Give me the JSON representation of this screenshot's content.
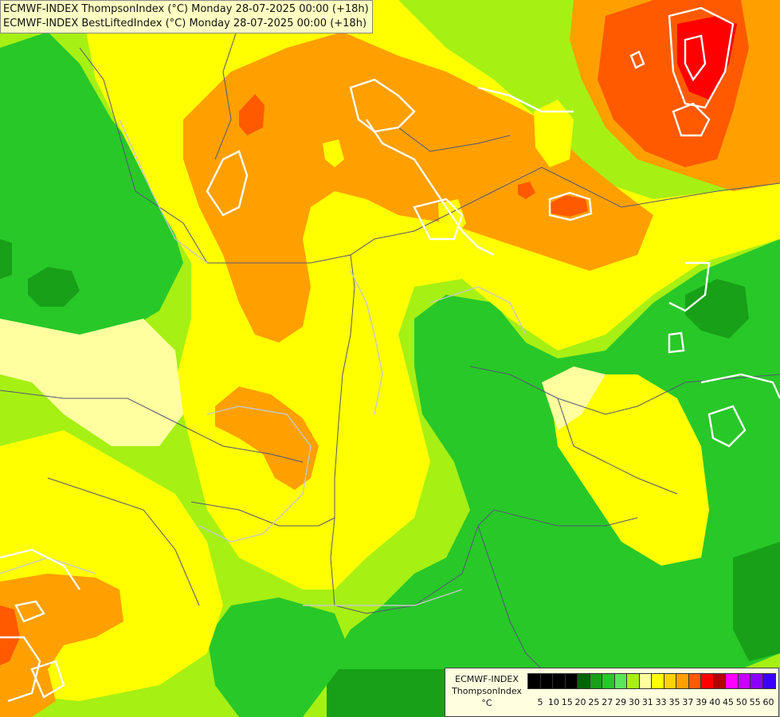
{
  "title_lines": [
    "ECMWF-INDEX ThompsonIndex (°C) Monday 28-07-2025 00:00 (+18h)",
    "ECMWF-INDEX BestLiftedIndex (°C) Monday 28-07-2025 00:00 (+18h)"
  ],
  "legend": {
    "label_lines": [
      "ECMWF-INDEX",
      "ThompsonIndex",
      "°C"
    ],
    "swatch_colors": [
      "#000000",
      "#000000",
      "#000000",
      "#000000",
      "#006400",
      "#18a018",
      "#28c828",
      "#5ae65a",
      "#a6f014",
      "#ffffa0",
      "#ffff00",
      "#ffd200",
      "#ffa000",
      "#ff5a00",
      "#ff0000",
      "#b40000",
      "#ff00ff",
      "#c800ff",
      "#8c00ff",
      "#3c00ff"
    ],
    "ticks": [
      "5",
      "10",
      "15",
      "20",
      "25",
      "27",
      "29",
      "30",
      "31",
      "33",
      "35",
      "37",
      "39",
      "40",
      "45",
      "50",
      "55",
      "60"
    ]
  },
  "colors": {
    "dark_green": "#18a018",
    "green": "#28c828",
    "light_green": "#5ae65a",
    "yellow_green": "#a6f014",
    "pale_yellow": "#ffffa0",
    "yellow": "#ffff00",
    "light_orange": "#ffd200",
    "orange": "#ffa000",
    "dark_orange": "#ff5a00",
    "red": "#ff0000"
  }
}
